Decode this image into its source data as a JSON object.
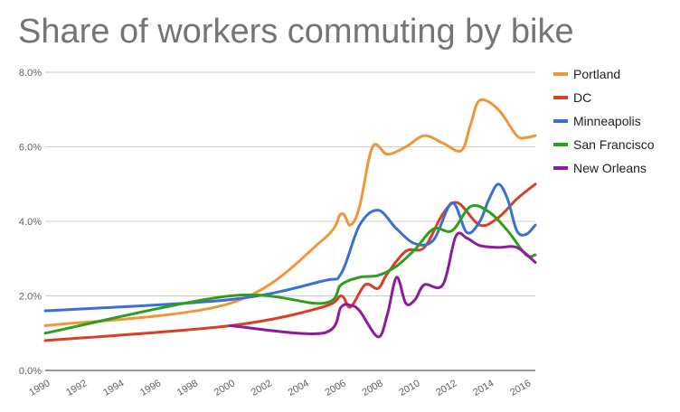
{
  "chart_data": {
    "type": "line",
    "title": "Share of workers commuting by bike",
    "xlabel": "",
    "ylabel": "",
    "x_ticks": [
      "1990",
      "1992",
      "1994",
      "1996",
      "1998",
      "2000",
      "2002",
      "2004",
      "2006",
      "2008",
      "2010",
      "2012",
      "2014",
      "2016"
    ],
    "y_ticks": [
      "0.0%",
      "2.0%",
      "4.0%",
      "6.0%",
      "8.0%"
    ],
    "xlim": [
      1990,
      2016.5
    ],
    "ylim": [
      0,
      8
    ],
    "grid": true,
    "legend_position": "right",
    "series": [
      {
        "name": "Portland",
        "color": "#f0963a",
        "x": [
          1990,
          2000,
          2005,
          2006,
          2006.5,
          2007,
          2007.7,
          2008.5,
          2009.5,
          2010.5,
          2011.5,
          2012.5,
          2013,
          2013.5,
          2014.5,
          2015.5,
          2016,
          2016.5
        ],
        "y": [
          1.2,
          1.8,
          3.5,
          4.2,
          3.9,
          4.4,
          6.0,
          5.8,
          6.0,
          6.3,
          6.1,
          5.9,
          6.6,
          7.25,
          7.0,
          6.3,
          6.25,
          6.3
        ]
      },
      {
        "name": "DC",
        "color": "#d93e27",
        "x": [
          1990,
          2000,
          2005,
          2006,
          2006.5,
          2007.3,
          2008,
          2008.5,
          2009.5,
          2010.5,
          2011.5,
          2012.3,
          2013.5,
          2014.5,
          2015.5,
          2016.5
        ],
        "y": [
          0.8,
          1.2,
          1.7,
          2.0,
          1.7,
          2.3,
          2.2,
          2.6,
          3.2,
          3.3,
          4.2,
          4.5,
          3.9,
          4.1,
          4.6,
          5.0
        ]
      },
      {
        "name": "Minneapolis",
        "color": "#3a6fd8",
        "x": [
          1990,
          2000,
          2005,
          2006,
          2007,
          2008,
          2009,
          2010,
          2011,
          2012,
          2012.8,
          2013.5,
          2014,
          2014.5,
          2015,
          2015.5,
          2016,
          2016.5
        ],
        "y": [
          1.6,
          1.9,
          2.4,
          2.6,
          3.9,
          4.3,
          3.8,
          3.4,
          3.5,
          4.5,
          3.7,
          4.0,
          4.6,
          5.0,
          4.6,
          3.75,
          3.65,
          3.9
        ]
      },
      {
        "name": "San Francisco",
        "color": "#2f9e1d",
        "x": [
          1990,
          2000,
          2005,
          2006,
          2007,
          2008,
          2009,
          2010,
          2011,
          2012,
          2013,
          2014,
          2015,
          2016,
          2016.5
        ],
        "y": [
          1.0,
          2.0,
          1.8,
          2.3,
          2.5,
          2.55,
          2.8,
          3.25,
          3.8,
          3.75,
          4.4,
          4.25,
          3.75,
          3.1,
          3.1
        ]
      },
      {
        "name": "New Orleans",
        "color": "#8e1a9e",
        "x": [
          2000,
          2005,
          2006,
          2006.5,
          2007,
          2008,
          2008.5,
          2009,
          2009.5,
          2010,
          2010.5,
          2011.5,
          2012.2,
          2012.8,
          2013.5,
          2014.5,
          2015.5,
          2016.5
        ],
        "y": [
          1.2,
          1.0,
          1.7,
          1.75,
          1.6,
          0.9,
          1.5,
          2.5,
          1.8,
          1.9,
          2.3,
          2.3,
          3.6,
          3.55,
          3.35,
          3.3,
          3.3,
          2.9
        ]
      }
    ]
  }
}
